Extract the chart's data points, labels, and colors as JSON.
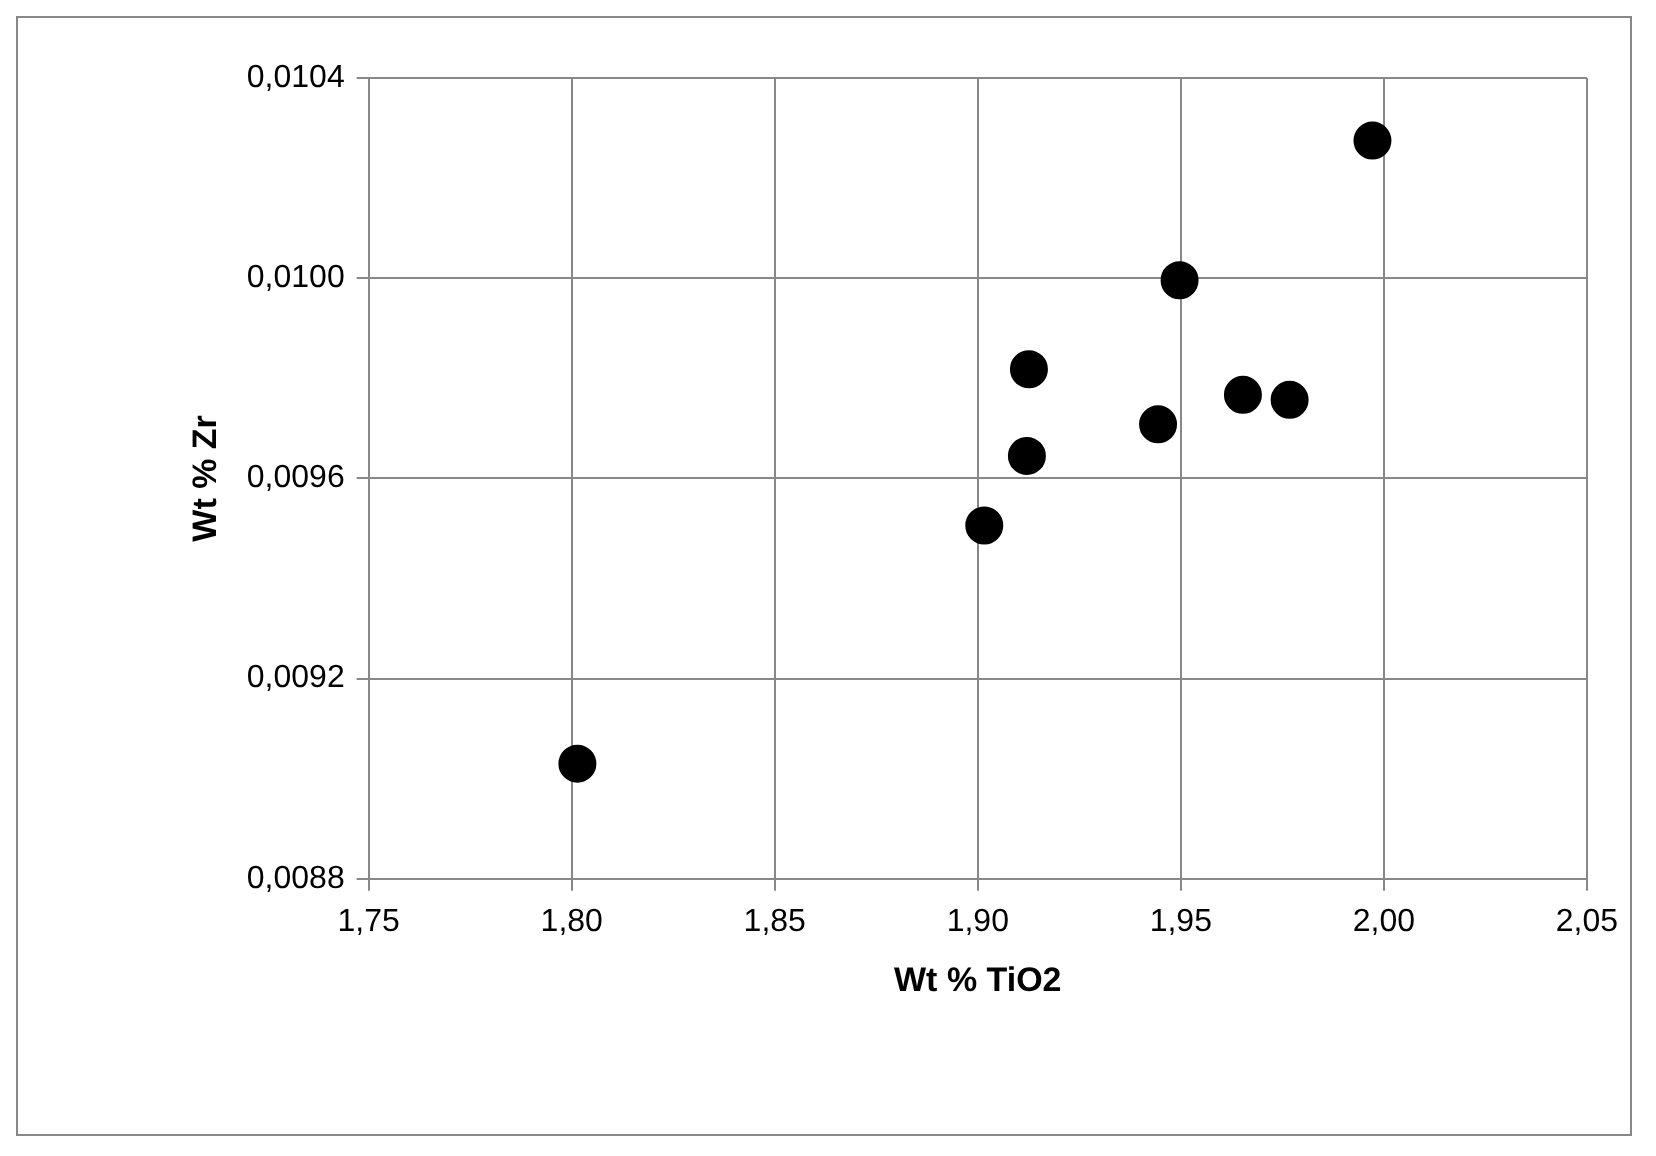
{
  "chart_data": {
    "type": "scatter",
    "xlabel": "Wt % TiO2",
    "ylabel": "Wt % Zr",
    "x": [
      1.8014,
      1.9016,
      1.9121,
      1.9126,
      1.9444,
      1.9497,
      1.9653,
      1.9768,
      1.9972
    ],
    "series": [
      {
        "color": "#000000",
        "values": [
          0.00903,
          0.009506,
          0.009645,
          0.009818,
          0.009708,
          0.009996,
          0.009767,
          0.009757,
          0.010275
        ]
      }
    ],
    "xlim": [
      1.75,
      2.05
    ],
    "xticks": [
      {
        "value": 1.75,
        "label": "1,75"
      },
      {
        "value": 1.8,
        "label": "1,80"
      },
      {
        "value": 1.85,
        "label": "1,85"
      },
      {
        "value": 1.9,
        "label": "1,90"
      },
      {
        "value": 1.95,
        "label": "1,95"
      },
      {
        "value": 2.0,
        "label": "2,00"
      },
      {
        "value": 2.05,
        "label": "2,05"
      }
    ],
    "ylim": [
      0.0088,
      0.0104
    ],
    "yticks": [
      {
        "value": 0.0088,
        "label": "0,0088"
      },
      {
        "value": 0.0092,
        "label": "0,0092"
      },
      {
        "value": 0.0096,
        "label": "0,0096"
      },
      {
        "value": 0.01,
        "label": "0,0100"
      },
      {
        "value": 0.0104,
        "label": "0,0104"
      }
    ],
    "grid": true,
    "legend": false,
    "marker": "circle"
  }
}
